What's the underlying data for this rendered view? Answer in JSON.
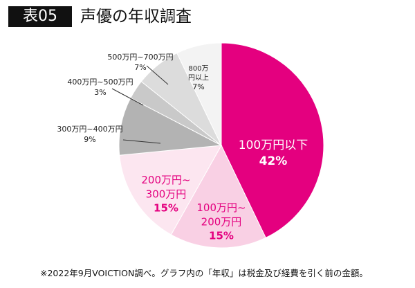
{
  "header": {
    "badge": "表05",
    "title": "声優の年収調査"
  },
  "footnote": "※2022年9月VOICTION調べ。グラフ内の「年収」は税金及び経費を引く前の金額。",
  "chart_data": {
    "type": "pie",
    "title": "声優の年収調査",
    "start": "top",
    "direction": "clockwise",
    "slices": [
      {
        "label": "100万円以下",
        "value": 42,
        "text": "42%",
        "color": "#e4007f",
        "label_color": "#ffffff"
      },
      {
        "label": "100万円~200万円",
        "value": 15,
        "text": "15%",
        "color": "#f9d0e4",
        "label_color": "#e4007f"
      },
      {
        "label": "200万円~300万円",
        "value": 15,
        "text": "15%",
        "color": "#fce6f0",
        "label_color": "#e4007f"
      },
      {
        "label": "300万円~400万円",
        "value": 9,
        "text": "9%",
        "color": "#b3b3b3",
        "label_color": "#222222"
      },
      {
        "label": "400万円~500万円",
        "value": 3,
        "text": "3%",
        "color": "#c9c9c9",
        "label_color": "#222222"
      },
      {
        "label": "500万円~700万円",
        "value": 7,
        "text": "7%",
        "color": "#dcdcdc",
        "label_color": "#222222"
      },
      {
        "label": "800万円以上",
        "value": 7,
        "text": "7%",
        "color": "#f3f3f3",
        "label_color": "#222222"
      }
    ]
  }
}
